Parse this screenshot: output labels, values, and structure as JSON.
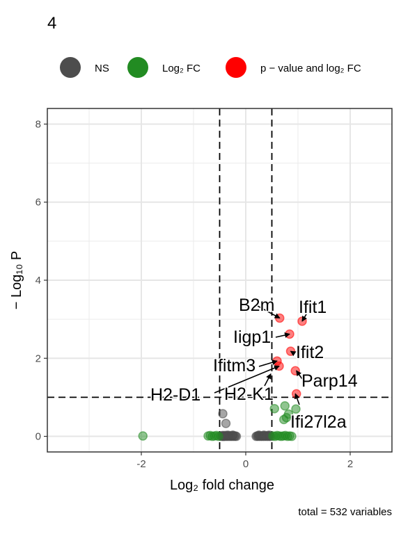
{
  "chart_data": {
    "type": "scatter",
    "title": "4",
    "xlabel": "Log₂ fold change",
    "ylabel": "− Log₁₀ P",
    "xlim": [
      -3.8,
      2.8
    ],
    "ylim": [
      -0.4,
      8.4
    ],
    "x_ticks": [
      -2,
      0,
      2
    ],
    "y_ticks": [
      0,
      2,
      4,
      6,
      8
    ],
    "grid": true,
    "legend_position": "top",
    "legend": [
      {
        "key": "NS",
        "label": "NS",
        "color": "#4d4d4d"
      },
      {
        "key": "FC",
        "label": "Log₂ FC",
        "color": "#228b22"
      },
      {
        "key": "PFC",
        "label": "p − value and log₂ FC",
        "color": "#ff0000"
      }
    ],
    "fc_cutoff": 0.5,
    "p_cutoff": 1.0,
    "caption": "total = 532 variables",
    "series": [
      {
        "key": "NS",
        "color": "#4d4d4d",
        "x": [
          -0.45,
          -0.43,
          -0.4,
          -0.38,
          -0.36,
          -0.34,
          -0.32,
          -0.3,
          -0.28,
          -0.26,
          -0.24,
          -0.22,
          -0.2,
          -0.18,
          -0.48,
          -0.46,
          -0.44,
          -0.42,
          -0.35,
          -0.25,
          0.2,
          0.22,
          0.24,
          0.26,
          0.28,
          0.3,
          0.32,
          0.34,
          0.36,
          0.38,
          0.4,
          0.42,
          0.44,
          0.46,
          0.48,
          0.25,
          0.35,
          0.45,
          -0.44,
          -0.38
        ],
        "y": [
          0.01,
          0.0,
          0.02,
          0.0,
          0.01,
          0.0,
          0.02,
          0.0,
          0.01,
          0.0,
          0.02,
          0.0,
          0.01,
          0.0,
          0.01,
          0.0,
          0.02,
          0.0,
          0.03,
          0.03,
          0.0,
          0.01,
          0.0,
          0.02,
          0.0,
          0.01,
          0.0,
          0.02,
          0.0,
          0.01,
          0.0,
          0.02,
          0.0,
          0.01,
          0.0,
          0.03,
          0.03,
          0.03,
          0.58,
          0.33
        ]
      },
      {
        "key": "FC",
        "color": "#228b22",
        "x": [
          -1.97,
          -0.72,
          -0.68,
          -0.64,
          -0.6,
          -0.56,
          -0.52,
          0.52,
          0.56,
          0.6,
          0.64,
          0.68,
          0.72,
          0.76,
          0.8,
          0.84,
          0.88,
          0.55,
          0.75,
          0.73,
          0.78,
          0.82,
          0.96
        ],
        "y": [
          0.01,
          0.01,
          0.02,
          0.0,
          0.01,
          0.02,
          0.0,
          0.01,
          0.0,
          0.02,
          0.01,
          0.0,
          0.01,
          0.02,
          0.0,
          0.01,
          0.0,
          0.71,
          0.78,
          0.43,
          0.48,
          0.57,
          0.7
        ]
      },
      {
        "key": "PFC",
        "color": "#ff0000",
        "x": [
          0.65,
          1.08,
          0.84,
          0.86,
          0.6,
          0.64,
          0.95,
          0.97
        ],
        "y": [
          3.03,
          2.95,
          2.62,
          2.18,
          1.93,
          1.8,
          1.68,
          1.09
        ]
      }
    ],
    "labels": [
      {
        "text": "B2m",
        "x": 0.65,
        "y": 3.03
      },
      {
        "text": "Ifit1",
        "x": 1.08,
        "y": 2.95
      },
      {
        "text": "Iigp1",
        "x": 0.84,
        "y": 2.62
      },
      {
        "text": "Ifit2",
        "x": 0.86,
        "y": 2.18
      },
      {
        "text": "Ifitm3",
        "x": 0.6,
        "y": 1.93
      },
      {
        "text": "Parp14",
        "x": 0.97,
        "y": 1.68
      },
      {
        "text": "H2-D1",
        "x": 0.64,
        "y": 1.8
      },
      {
        "text": "H2-K1",
        "x": 0.48,
        "y": 1.6
      },
      {
        "text": "Ifi27l2a",
        "x": 0.95,
        "y": 1.09
      }
    ]
  }
}
